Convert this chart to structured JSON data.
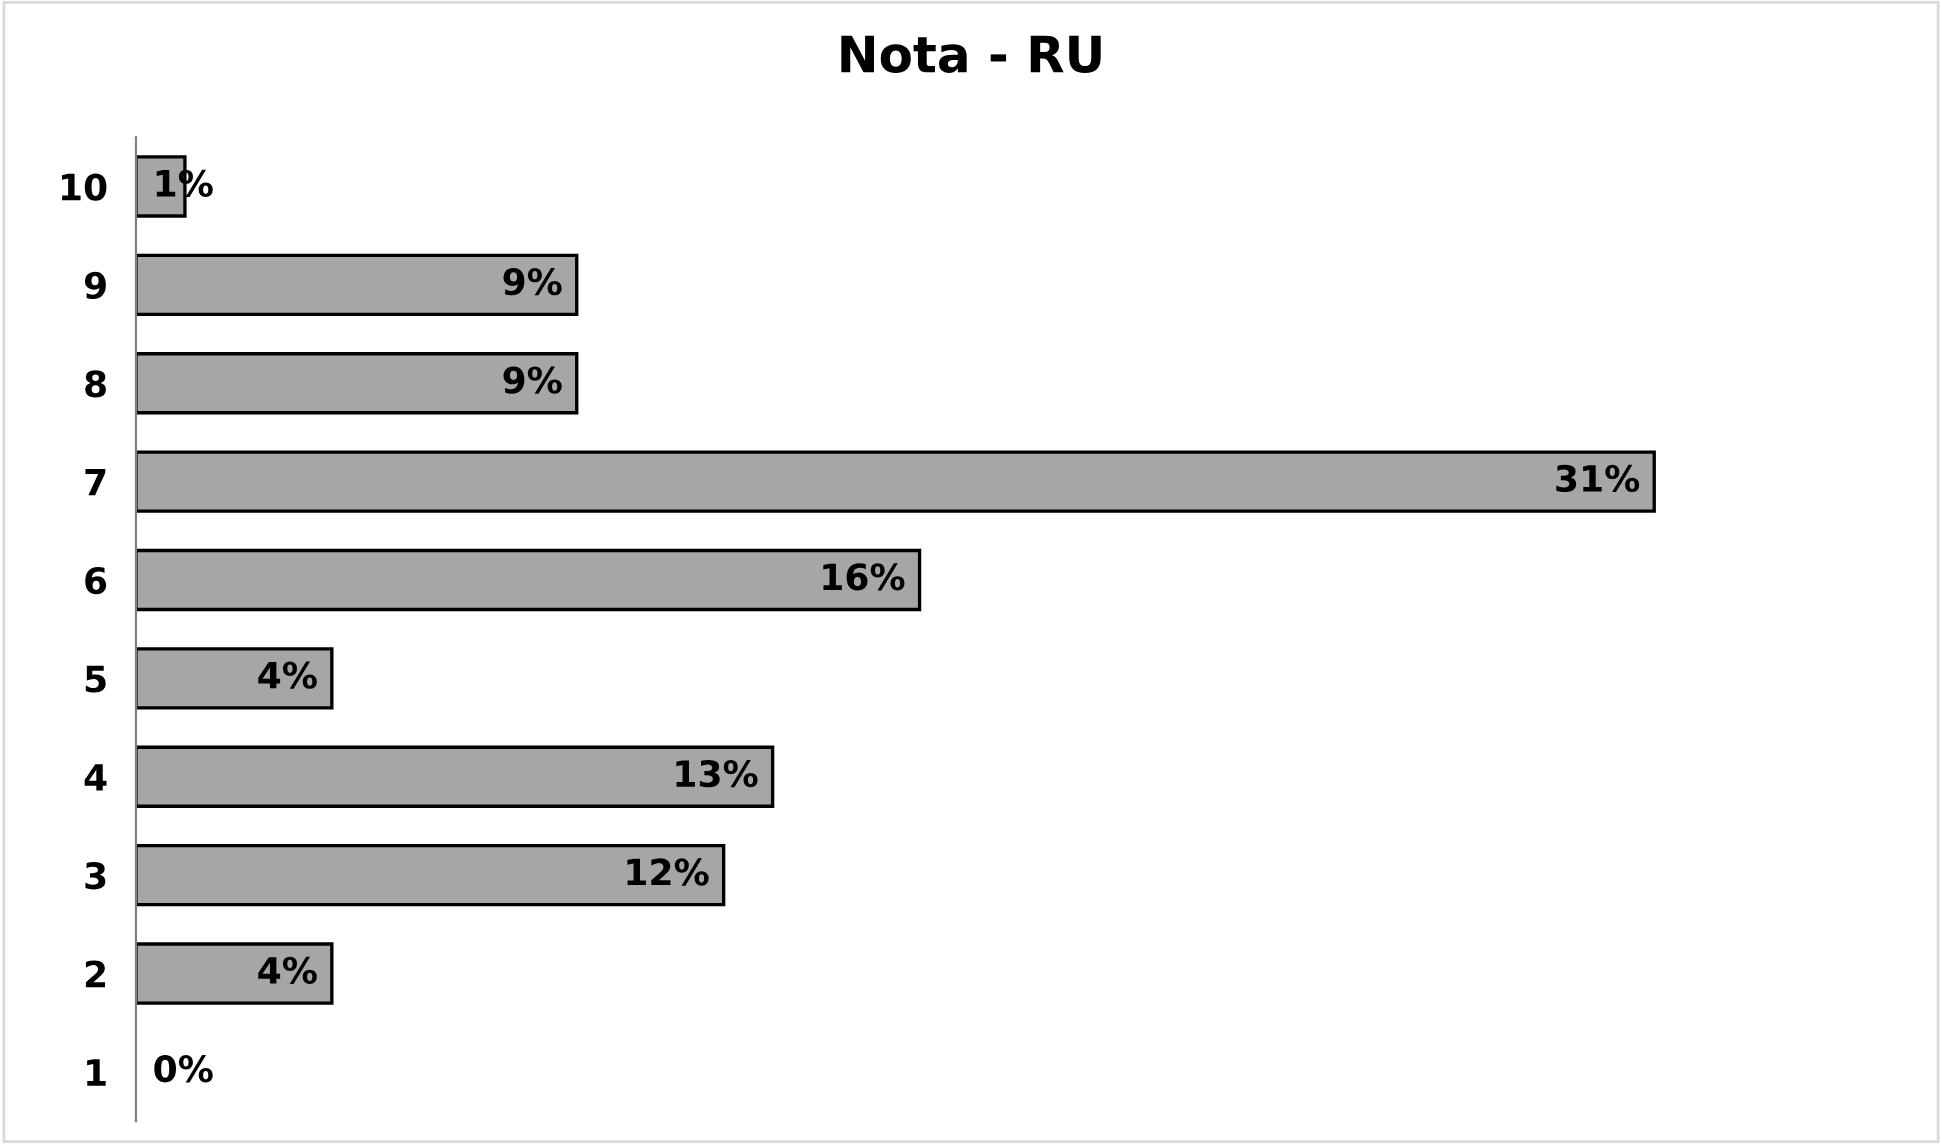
{
  "chart_data": {
    "type": "bar",
    "orientation": "horizontal",
    "title": "Nota - RU",
    "categories": [
      "10",
      "9",
      "8",
      "7",
      "6",
      "5",
      "4",
      "3",
      "2",
      "1"
    ],
    "values": [
      1,
      9,
      9,
      31,
      16,
      4,
      13,
      12,
      4,
      0
    ],
    "value_labels": [
      "1%",
      "9%",
      "9%",
      "31%",
      "16%",
      "4%",
      "13%",
      "12%",
      "4%",
      "0%"
    ],
    "color": "#a6a6a6",
    "tick_labels": "y",
    "grid": false,
    "legend": false
  }
}
